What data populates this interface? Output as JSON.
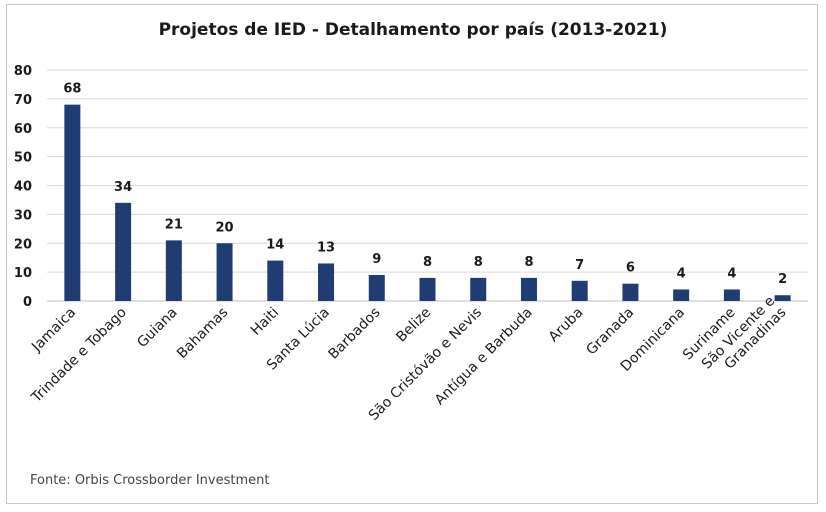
{
  "chart_data": {
    "type": "bar",
    "title": "Projetos de IED - Detalhamento por país (2013-2021)",
    "categories": [
      "Jamaica",
      "Trindade e Tobago",
      "Guiana",
      "Bahamas",
      "Haiti",
      "Santa Lúcia",
      "Barbados",
      "Belize",
      "São Cristóvão e Nevis",
      "Antígua e Barbuda",
      "Aruba",
      "Granada",
      "Dominicana",
      "Suriname",
      "São Vicente e Granadinas"
    ],
    "category_lines": [
      [
        "Jamaica"
      ],
      [
        "Trindade e Tobago"
      ],
      [
        "Guiana"
      ],
      [
        "Bahamas"
      ],
      [
        "Haiti"
      ],
      [
        "Santa Lúcia"
      ],
      [
        "Barbados"
      ],
      [
        "Belize"
      ],
      [
        "São Cristóvão e Nevis"
      ],
      [
        "Antígua e Barbuda"
      ],
      [
        "Aruba"
      ],
      [
        "Granada"
      ],
      [
        "Dominicana"
      ],
      [
        "Suriname"
      ],
      [
        "São Vicente e",
        "Granadinas"
      ]
    ],
    "values": [
      68,
      34,
      21,
      20,
      14,
      13,
      9,
      8,
      8,
      8,
      7,
      6,
      4,
      4,
      2
    ],
    "data_labels": [
      "68",
      "34",
      "21",
      "20",
      "14",
      "13",
      "9",
      "8",
      "8",
      "8",
      "7",
      "6",
      "4",
      "4",
      "2"
    ],
    "ylim": [
      0,
      80
    ],
    "yticks": [
      0,
      10,
      20,
      30,
      40,
      50,
      60,
      70,
      80
    ],
    "xlabel": "",
    "ylabel": "",
    "grid": true,
    "legend": false,
    "bar_color": "#1f3d73",
    "grid_color": "#d9d9d9"
  },
  "source": "Fonte: Orbis Crossborder Investment"
}
